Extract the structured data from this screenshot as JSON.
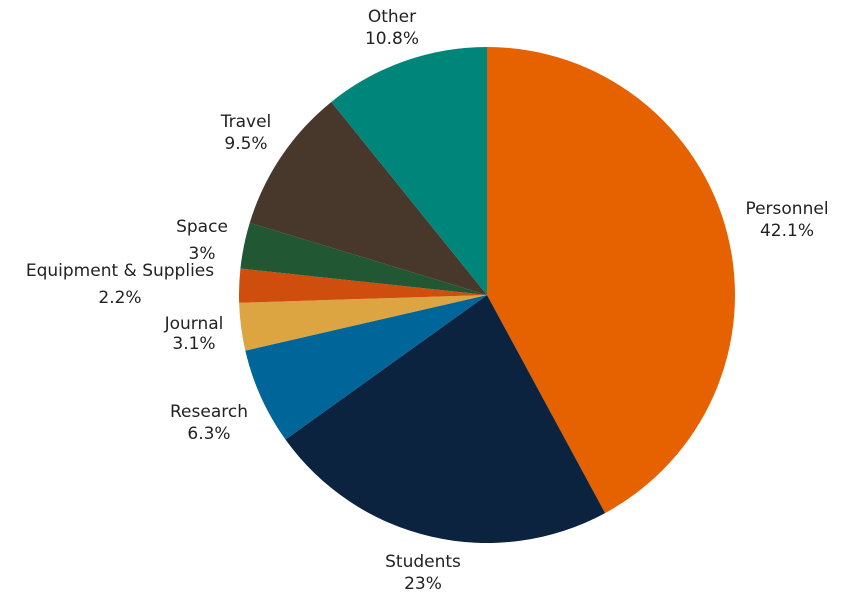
{
  "chart_data": {
    "type": "pie",
    "title": "",
    "start": "12 o'clock",
    "direction": "clockwise",
    "slices": [
      {
        "label": "Personnel",
        "display": "42.1%",
        "value": 42.1,
        "color": "#E66100"
      },
      {
        "label": "Students",
        "display": "23%",
        "value": 23.0,
        "color": "#0C2340"
      },
      {
        "label": "Research",
        "display": "6.3%",
        "value": 6.3,
        "color": "#006699"
      },
      {
        "label": "Journal",
        "display": "3.1%",
        "value": 3.1,
        "color": "#DCA541"
      },
      {
        "label": "Equipment & Supplies",
        "display": "2.2%",
        "value": 2.2,
        "color": "#CF4D0D"
      },
      {
        "label": "Space",
        "display": "3%",
        "value": 3.0,
        "color": "#215732"
      },
      {
        "label": "Travel",
        "display": "9.5%",
        "value": 9.5,
        "color": "#48372B"
      },
      {
        "label": "Other",
        "display": "10.8%",
        "value": 10.8,
        "color": "#00857A"
      }
    ]
  }
}
